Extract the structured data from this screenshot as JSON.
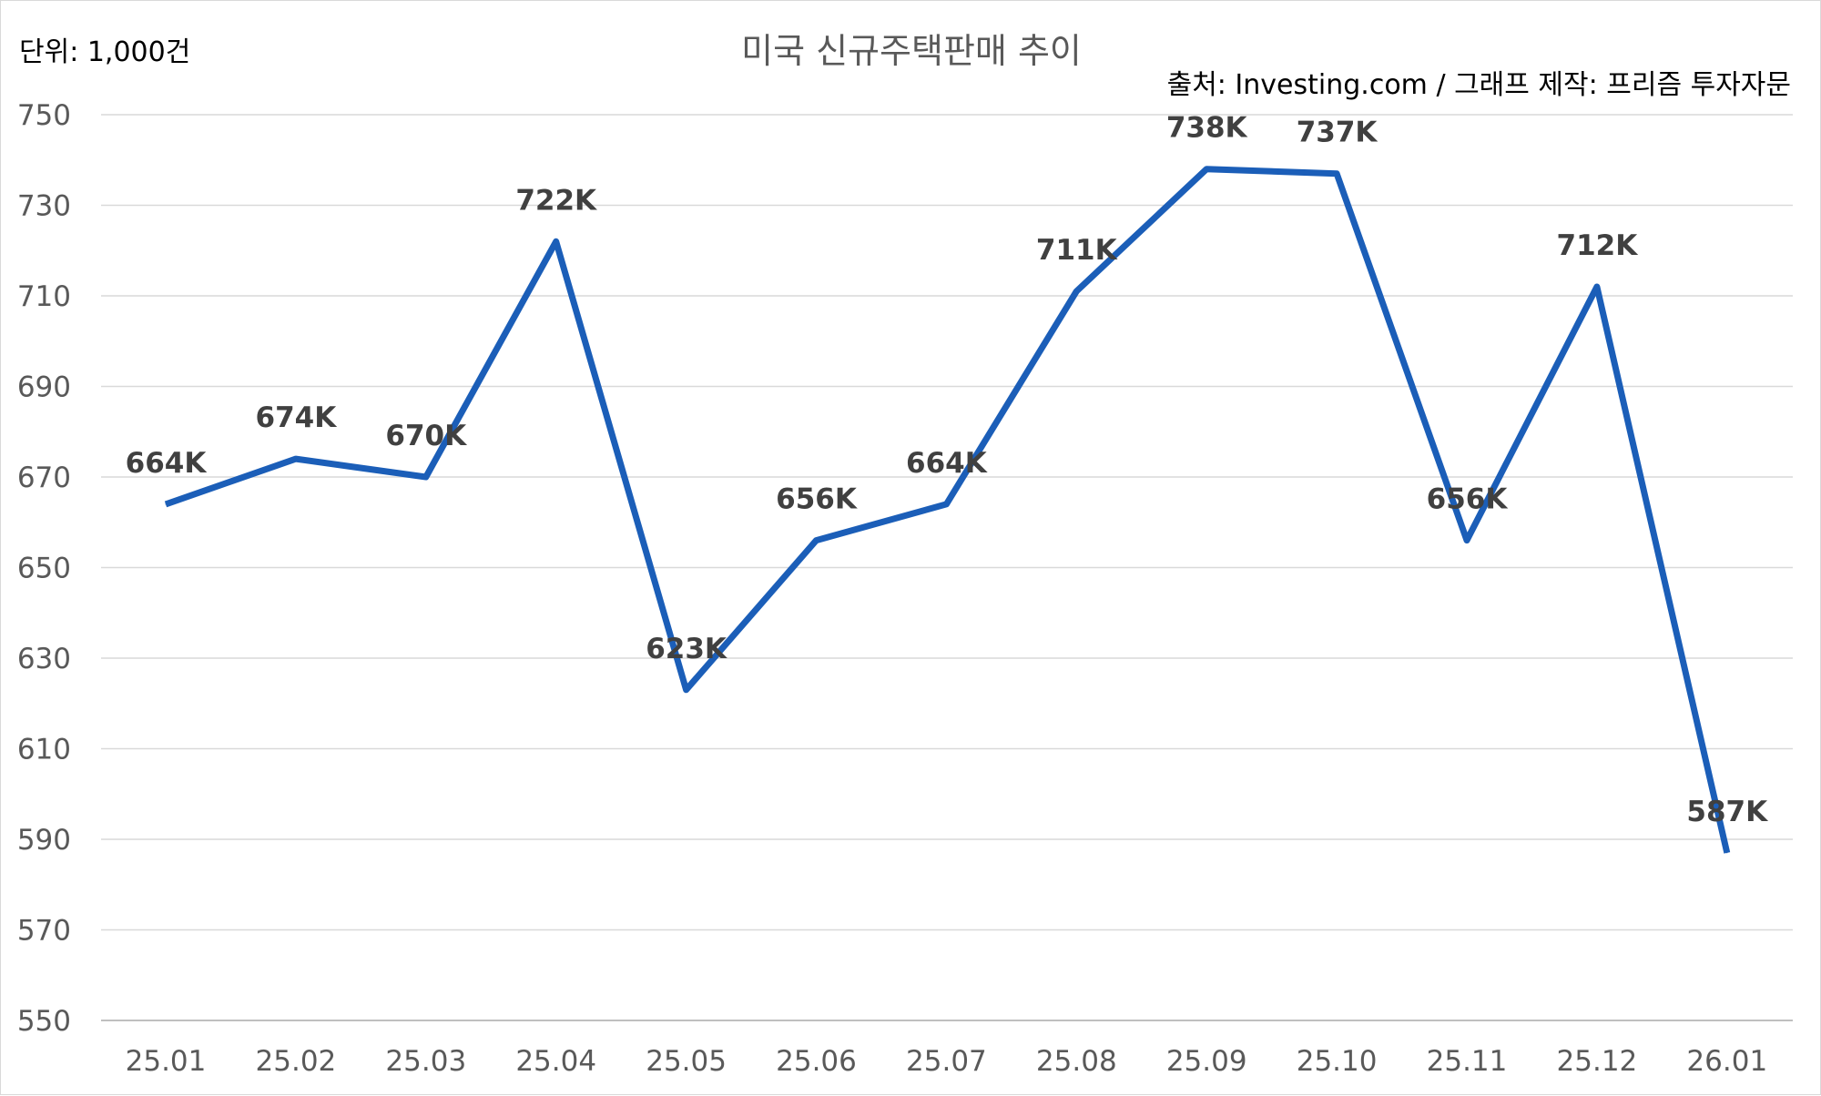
{
  "colors": {
    "series": "#1b5eb8"
  },
  "chart_data": {
    "type": "line",
    "title": "미국 신규주택판매 추이",
    "unit_label": "단위: 1,000건",
    "source_label": "출처: Investing.com / 그래프 제작: 프리즘 투자자문",
    "categories": [
      "25.01",
      "25.02",
      "25.03",
      "25.04",
      "25.05",
      "25.06",
      "25.07",
      "25.08",
      "25.09",
      "25.10",
      "25.11",
      "25.12",
      "26.01"
    ],
    "series": [
      {
        "values": [
          664,
          674,
          670,
          722,
          623,
          656,
          664,
          711,
          738,
          737,
          656,
          712,
          587
        ],
        "data_labels": [
          "664K",
          "674K",
          "670K",
          "722K",
          "623K",
          "656K",
          "664K",
          "711K",
          "738K",
          "737K",
          "656K",
          "712K",
          "587K"
        ]
      }
    ],
    "ylim": [
      550,
      750
    ],
    "yticks": [
      "550",
      "570",
      "590",
      "610",
      "630",
      "650",
      "670",
      "690",
      "710",
      "730",
      "750"
    ],
    "grid": true,
    "legend": "none"
  }
}
